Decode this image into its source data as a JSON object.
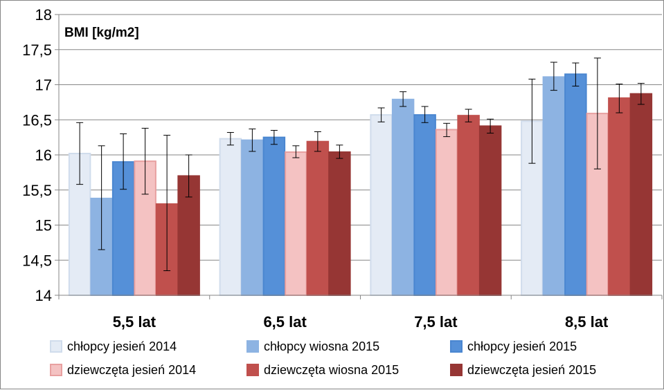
{
  "chart_data": {
    "type": "bar",
    "title": "BMI [kg/m2]",
    "xlabel": "",
    "ylabel": "",
    "ylim": [
      14,
      18
    ],
    "yticks": [
      14,
      14.5,
      15,
      15.5,
      16,
      16.5,
      17,
      17.5,
      18
    ],
    "ytick_labels": [
      "14",
      "14,5",
      "15",
      "15,5",
      "16",
      "16,5",
      "17",
      "17,5",
      "18"
    ],
    "categories": [
      "5,5 lat",
      "6,5 lat",
      "7,5 lat",
      "8,5 lat"
    ],
    "legend_position": "bottom",
    "series": [
      {
        "name": "chłopcy jesień 2014",
        "color": "#E4EBF5",
        "edge": "#D0DCEC",
        "values": [
          16.02,
          16.23,
          16.57,
          16.48
        ],
        "err_low": [
          15.58,
          16.14,
          16.47,
          15.88
        ],
        "err_high": [
          16.46,
          16.32,
          16.67,
          17.08
        ]
      },
      {
        "name": "chłopcy wiosna 2015",
        "color": "#8DB3E2",
        "edge": "#8DB3E2",
        "values": [
          15.38,
          16.21,
          16.79,
          17.11
        ],
        "err_low": [
          14.65,
          16.05,
          16.69,
          16.92
        ],
        "err_high": [
          16.13,
          16.37,
          16.9,
          17.32
        ]
      },
      {
        "name": "chłopcy jesień 2015",
        "color": "#5590D8",
        "edge": "#4A86D0",
        "values": [
          15.9,
          16.25,
          16.57,
          17.15
        ],
        "err_low": [
          15.51,
          16.15,
          16.46,
          16.98
        ],
        "err_high": [
          16.3,
          16.35,
          16.69,
          17.31
        ]
      },
      {
        "name": "dziewczęta jesień 2014",
        "color": "#F4C2C2",
        "edge": "#E8A0A0",
        "values": [
          15.91,
          16.04,
          16.36,
          16.59
        ],
        "err_low": [
          15.44,
          15.96,
          16.26,
          15.8
        ],
        "err_high": [
          16.38,
          16.13,
          16.45,
          17.38
        ]
      },
      {
        "name": "dziewczęta wiosna 2015",
        "color": "#C0504D",
        "edge": "#C0504D",
        "values": [
          15.3,
          16.19,
          16.56,
          16.81
        ],
        "err_low": [
          14.35,
          16.05,
          16.47,
          16.6
        ],
        "err_high": [
          16.28,
          16.33,
          16.65,
          17.01
        ]
      },
      {
        "name": "dziewczęta jesień 2015",
        "color": "#963634",
        "edge": "#963634",
        "values": [
          15.7,
          16.04,
          16.41,
          16.87
        ],
        "err_low": [
          15.4,
          15.95,
          16.31,
          16.72
        ],
        "err_high": [
          16.0,
          16.14,
          16.51,
          17.02
        ]
      }
    ]
  }
}
